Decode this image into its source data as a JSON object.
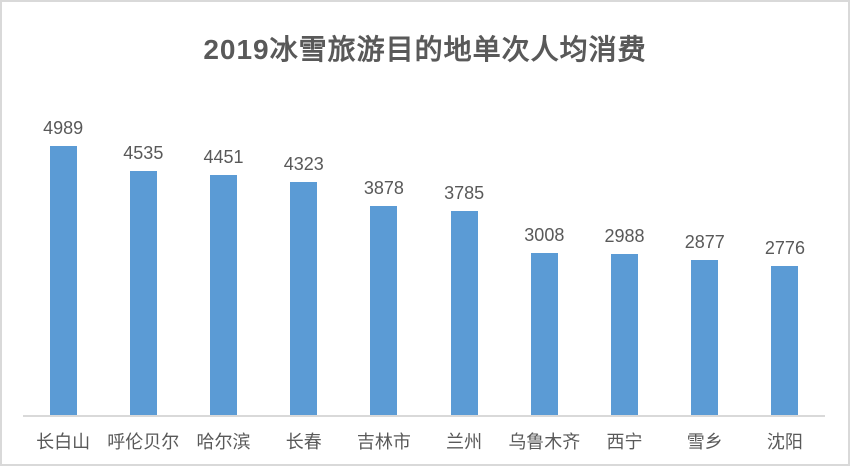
{
  "chart_data": {
    "type": "bar",
    "title": "2019冰雪旅游目的地单次人均消费",
    "categories": [
      "长白山",
      "呼伦贝尔",
      "哈尔滨",
      "长春",
      "吉林市",
      "兰州",
      "乌鲁木齐",
      "西宁",
      "雪乡",
      "沈阳"
    ],
    "values": [
      4989,
      4535,
      4451,
      4323,
      3878,
      3785,
      3008,
      2988,
      2877,
      2776
    ],
    "xlabel": "",
    "ylabel": "",
    "ylim": [
      0,
      6000
    ],
    "grid": false,
    "legend": false,
    "data_labels": true,
    "bar_color": "#5b9bd5",
    "text_color": "#595959",
    "axis_line_color": "#d9d9d9",
    "background_color": "#ffffff"
  }
}
